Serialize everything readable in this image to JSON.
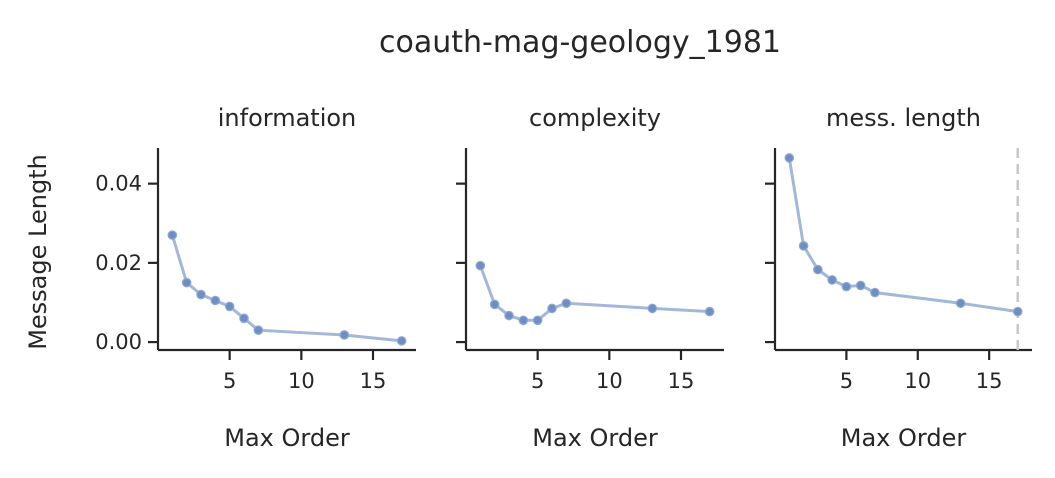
{
  "figure": {
    "suptitle": "coauth-mag-geology_1981"
  },
  "chart_data": [
    {
      "type": "line",
      "title": "information",
      "xlabel": "Max Order",
      "ylabel": "Message Length",
      "xlim": [
        0,
        18
      ],
      "ylim": [
        -0.002,
        0.049
      ],
      "xticks": [
        5,
        10,
        15
      ],
      "xtick_labels": [
        "5",
        "10",
        "15"
      ],
      "yticks": [
        0.0,
        0.02,
        0.04
      ],
      "ytick_labels": [
        "0.00",
        "0.02",
        "0.04"
      ],
      "x": [
        1,
        2,
        3,
        4,
        5,
        6,
        7,
        13,
        17
      ],
      "y": [
        0.027,
        0.015,
        0.012,
        0.0105,
        0.009,
        0.006,
        0.003,
        0.0018,
        0.0003
      ],
      "vline_x": null,
      "color": "#a3b8d6"
    },
    {
      "type": "line",
      "title": "complexity",
      "xlabel": "Max Order",
      "ylabel": "",
      "xlim": [
        0,
        18
      ],
      "ylim": [
        -0.002,
        0.049
      ],
      "xticks": [
        5,
        10,
        15
      ],
      "xtick_labels": [
        "5",
        "10",
        "15"
      ],
      "yticks": [
        0.0,
        0.02,
        0.04
      ],
      "ytick_labels": [],
      "x": [
        1,
        2,
        3,
        4,
        5,
        6,
        7,
        13,
        17
      ],
      "y": [
        0.0193,
        0.0095,
        0.0067,
        0.0055,
        0.0055,
        0.0085,
        0.0098,
        0.0085,
        0.0077
      ],
      "vline_x": null,
      "color": "#a3b8d6"
    },
    {
      "type": "line",
      "title": "mess. length",
      "xlabel": "Max Order",
      "ylabel": "",
      "xlim": [
        0,
        18
      ],
      "ylim": [
        -0.002,
        0.049
      ],
      "xticks": [
        5,
        10,
        15
      ],
      "xtick_labels": [
        "5",
        "10",
        "15"
      ],
      "yticks": [
        0.0,
        0.02,
        0.04
      ],
      "ytick_labels": [],
      "x": [
        1,
        2,
        3,
        4,
        5,
        6,
        7,
        13,
        17
      ],
      "y": [
        0.0465,
        0.0243,
        0.0183,
        0.0157,
        0.014,
        0.0143,
        0.0125,
        0.0098,
        0.0077
      ],
      "vline_x": 17,
      "color": "#a3b8d6"
    }
  ]
}
